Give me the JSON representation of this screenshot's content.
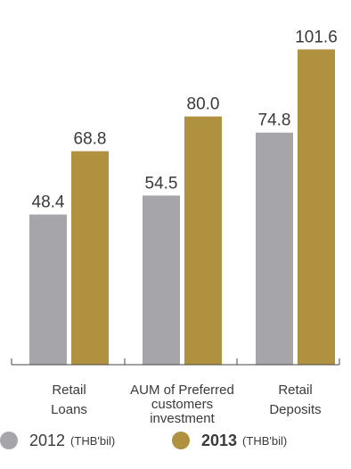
{
  "chart_data": {
    "type": "bar",
    "categories": [
      "Retail Loans",
      "AUM of Preferred customers investment",
      "Retail Deposits"
    ],
    "category_lines": [
      [
        "Retail",
        "Loans"
      ],
      [
        "AUM of Preferred",
        "customers",
        "investment"
      ],
      [
        "Retail",
        "Deposits"
      ]
    ],
    "series": [
      {
        "name": "2012",
        "values": [
          48.4,
          54.5,
          74.8
        ],
        "labels": [
          "48.4",
          "54.5",
          "74.8"
        ],
        "color": "#a6a5aa"
      },
      {
        "name": "2013",
        "values": [
          68.8,
          80.0,
          101.6
        ],
        "labels": [
          "68.8",
          "80.0",
          "101.6"
        ],
        "color": "#b09140"
      }
    ],
    "ylim": [
      0,
      110
    ],
    "grid": false,
    "legend_placement": "bottom"
  },
  "legend": {
    "items": [
      {
        "year": "2012",
        "unit": "(THB'bil)",
        "color": "#a6a5aa"
      },
      {
        "year": "2013",
        "unit": "(THB'bil)",
        "color": "#b09140"
      }
    ]
  }
}
